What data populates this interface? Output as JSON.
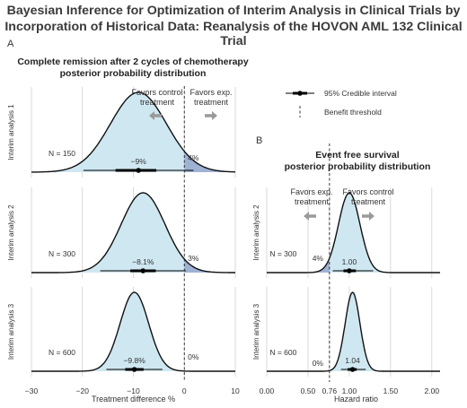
{
  "figure_title": [
    "Bayesian Inference for Optimization of Interim Analysis in Clinical Trials by",
    "Incorporation of Historical Data: Reanalysis of the HOVON AML 132 Clinical Trial"
  ],
  "panel_a": {
    "letter": "A",
    "title": [
      "Complete remission after 2 cycles of chemotherapy",
      "posterior probability distribution"
    ],
    "favors_left": [
      "Favors control",
      "treatment"
    ],
    "favors_right": [
      "Favors exp.",
      "treatment"
    ]
  },
  "panel_b": {
    "letter": "B",
    "title": [
      "Event free survival",
      "posterior probability distribution"
    ],
    "favors_left": [
      "Favors exp.",
      "treatment"
    ],
    "favors_right": [
      "Favors control",
      "treatment"
    ]
  },
  "legend": {
    "ci_label": "95% Credible interval",
    "threshold_label": "Benefit threshold"
  },
  "colors": {
    "fill": "#cfe7f1",
    "tail": "#9eb2d4",
    "curve": "#111111",
    "grid": "#d0d0d0",
    "arrow": "#9a9a9a",
    "text": "#333333"
  },
  "chart_data": [
    {
      "type": "area",
      "title": "Complete remission after 2 cycles of chemotherapy posterior probability distribution",
      "xlabel": "Treatment difference %",
      "xlim": [
        -30,
        10
      ],
      "xticks": [
        -30,
        -20,
        -10,
        0,
        10
      ],
      "xtick_labels": [
        "−30",
        "−20",
        "−10",
        "0",
        "10"
      ],
      "threshold": 0,
      "grid": true,
      "series": [
        {
          "name": "Interim analysis 1",
          "n_label": "N = 150",
          "mean": -9,
          "sd": 5.5,
          "ci": [
            -19.8,
            1.8
          ],
          "inner_ci": [
            -13.5,
            -5.5
          ],
          "estimate_label": "−9%",
          "tail_label": "4%"
        },
        {
          "name": "Interim analysis 2",
          "n_label": "N = 300",
          "mean": -8.1,
          "sd": 4.3,
          "ci": [
            -16.5,
            0.3
          ],
          "inner_ci": [
            -10.6,
            -5.6
          ],
          "estimate_label": "−8.1%",
          "tail_label": "3%"
        },
        {
          "name": "Interim analysis 3",
          "n_label": "N = 600",
          "mean": -9.8,
          "sd": 2.8,
          "ci": [
            -15.3,
            -4.3
          ],
          "inner_ci": [
            -11.6,
            -8
          ],
          "estimate_label": "−9.8%",
          "tail_label": "0%"
        }
      ]
    },
    {
      "type": "area",
      "title": "Event free survival posterior probability distribution",
      "xlabel": "Hazard ratio",
      "xlim": [
        0,
        2.1
      ],
      "xticks": [
        0,
        0.5,
        0.76,
        1,
        1.5,
        2
      ],
      "xtick_labels": [
        "0.00",
        "0.50",
        "0.76",
        "1.00",
        "1.50",
        "2.00"
      ],
      "threshold": 0.76,
      "grid": true,
      "series": [
        {
          "name": "Interim analysis 2",
          "n_label": "N = 300",
          "mean": 1.0,
          "sd": 0.13,
          "ci": [
            0.8,
            1.29
          ],
          "inner_ci": [
            0.93,
            1.08
          ],
          "estimate_label": "1.00",
          "tail_label": "4%"
        },
        {
          "name": "Interim analysis 3",
          "n_label": "N = 600",
          "mean": 1.04,
          "sd": 0.09,
          "ci": [
            0.9,
            1.2
          ],
          "inner_ci": [
            0.98,
            1.09
          ],
          "estimate_label": "1.04",
          "tail_label": "0%"
        }
      ]
    }
  ]
}
